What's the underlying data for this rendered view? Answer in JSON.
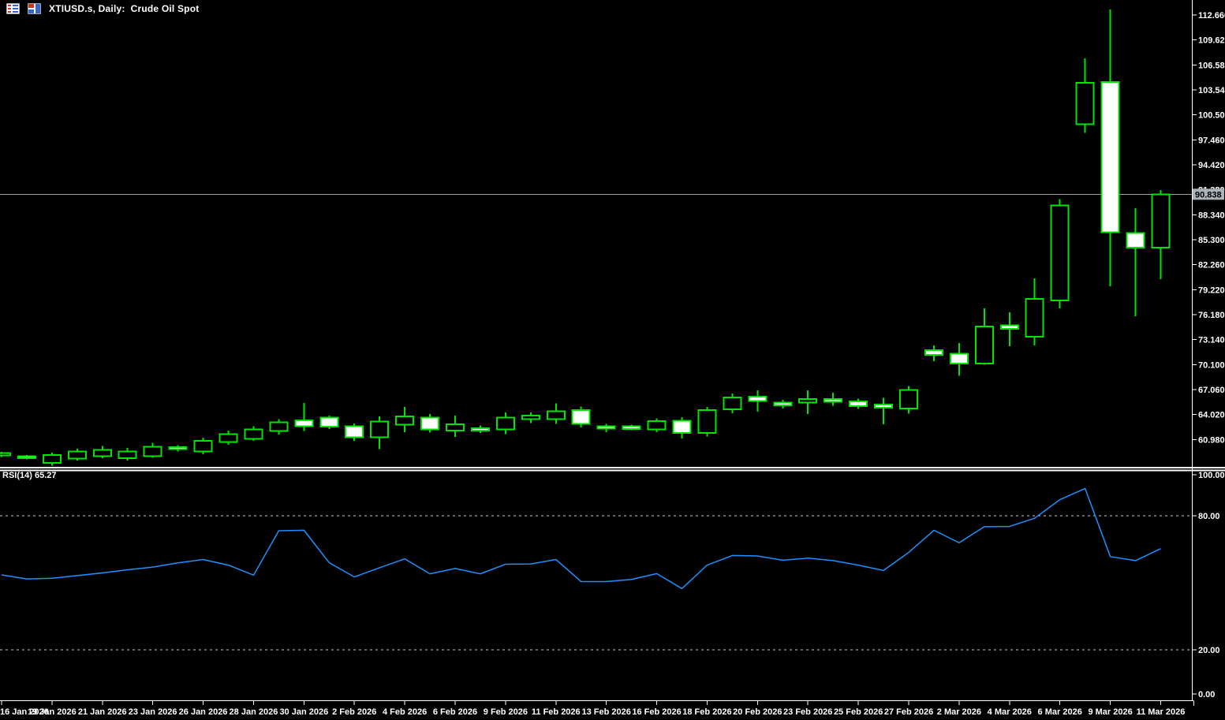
{
  "window": {
    "title": "XTIUSD.s, Daily:  Crude Oil Spot",
    "icons": [
      {
        "name": "table-icon"
      },
      {
        "name": "bar-chart-icon"
      }
    ]
  },
  "colors": {
    "background": "#000000",
    "candle_outline": "#00E400",
    "bull_fill": "#000000",
    "bear_fill": "#FFFFFF",
    "rsi_line": "#1E90FF",
    "axis_line": "#FFFFFF",
    "axis_text": "#FFFFFF",
    "level_dashed": "#CCCCCC",
    "current_price_line": "#9AA0A6",
    "current_price_label_bg": "#AAB2BA",
    "current_price_label_text": "#000000"
  },
  "chart_data": {
    "type": "candlestick",
    "symbol": "XTIUSD.s",
    "timeframe": "Daily",
    "instrument": "Crude Oil Spot",
    "current_price": "90.838",
    "ylim": [
      57.7,
      114.5
    ],
    "grid": false,
    "price_axis_ticks": [
      "112.660",
      "109.620",
      "106.580",
      "103.540",
      "100.500",
      "97.460",
      "94.420",
      "91.380",
      "88.340",
      "85.300",
      "82.260",
      "79.220",
      "76.180",
      "73.140",
      "70.100",
      "67.060",
      "64.020",
      "60.980"
    ],
    "time_axis_ticks": [
      "16 Jan 2026",
      "19 Jan 2026",
      "21 Jan 2026",
      "23 Jan 2026",
      "26 Jan 2026",
      "28 Jan 2026",
      "30 Jan 2026",
      "2 Feb 2026",
      "4 Feb 2026",
      "6 Feb 2026",
      "9 Feb 2026",
      "11 Feb 2026",
      "13 Feb 2026",
      "16 Feb 2026",
      "18 Feb 2026",
      "20 Feb 2026",
      "23 Feb 2026",
      "25 Feb 2026",
      "27 Feb 2026",
      "2 Mar 2026",
      "4 Mar 2026",
      "6 Mar 2026",
      "9 Mar 2026",
      "11 Mar 2026"
    ],
    "tick_every_n_candles": 2,
    "candles_ohlc": [
      [
        59.03,
        59.5,
        58.87,
        59.35
      ],
      [
        58.97,
        59.1,
        58.55,
        58.71
      ],
      [
        58.14,
        59.39,
        57.79,
        59.07
      ],
      [
        58.65,
        59.87,
        58.4,
        59.52
      ],
      [
        58.97,
        60.18,
        58.71,
        59.74
      ],
      [
        58.71,
        59.97,
        58.4,
        59.52
      ],
      [
        58.97,
        60.58,
        58.78,
        60.1
      ],
      [
        60.04,
        60.29,
        59.52,
        59.79
      ],
      [
        59.52,
        61.22,
        59.2,
        60.81
      ],
      [
        60.68,
        62.06,
        60.36,
        61.64
      ],
      [
        61.06,
        62.6,
        60.83,
        62.22
      ],
      [
        62.0,
        63.45,
        61.6,
        63.1
      ],
      [
        63.3,
        65.44,
        62.0,
        62.6
      ],
      [
        63.66,
        63.89,
        62.28,
        62.54
      ],
      [
        62.6,
        62.93,
        60.8,
        61.26
      ],
      [
        61.26,
        63.8,
        59.8,
        63.19
      ],
      [
        62.8,
        64.95,
        61.9,
        63.82
      ],
      [
        63.66,
        64.08,
        61.84,
        62.22
      ],
      [
        62.06,
        63.9,
        61.3,
        62.86
      ],
      [
        62.38,
        62.7,
        61.8,
        62.06
      ],
      [
        62.22,
        64.3,
        61.65,
        63.66
      ],
      [
        63.45,
        64.3,
        63.0,
        63.9
      ],
      [
        63.45,
        65.4,
        62.9,
        64.41
      ],
      [
        64.55,
        65.0,
        62.47,
        62.87
      ],
      [
        62.6,
        62.9,
        61.9,
        62.3
      ],
      [
        62.6,
        62.8,
        62.1,
        62.28
      ],
      [
        62.2,
        63.56,
        61.9,
        63.2
      ],
      [
        63.26,
        63.69,
        61.1,
        61.76
      ],
      [
        61.76,
        64.95,
        61.33,
        64.55
      ],
      [
        64.64,
        66.56,
        64.2,
        66.08
      ],
      [
        66.22,
        66.97,
        64.39,
        65.68
      ],
      [
        65.48,
        65.8,
        64.77,
        65.15
      ],
      [
        65.48,
        66.97,
        64.07,
        65.9
      ],
      [
        65.9,
        66.7,
        65.1,
        65.57
      ],
      [
        65.64,
        65.96,
        64.71,
        65.06
      ],
      [
        65.25,
        66.06,
        62.86,
        64.83
      ],
      [
        64.75,
        67.5,
        64.12,
        67.0
      ],
      [
        71.84,
        72.42,
        70.5,
        71.27
      ],
      [
        71.42,
        72.71,
        68.73,
        70.24
      ],
      [
        70.24,
        76.97,
        70.08,
        74.73
      ],
      [
        74.88,
        76.49,
        72.32,
        74.47
      ],
      [
        73.5,
        80.62,
        72.45,
        78.12
      ],
      [
        77.93,
        90.24,
        76.97,
        89.47
      ],
      [
        99.38,
        107.37,
        98.33,
        104.39
      ],
      [
        104.48,
        113.33,
        79.66,
        86.2
      ],
      [
        86.11,
        89.16,
        76.0,
        84.35
      ],
      [
        84.35,
        91.33,
        80.5,
        90.838
      ]
    ],
    "rsi": {
      "name": "RSI(14)",
      "current_value": "65.27",
      "range": [
        0,
        100
      ],
      "levels": [
        80,
        20
      ],
      "axis_ticks": [
        "100.00",
        "80.00",
        "20.00",
        "0.00"
      ],
      "values": [
        53.5,
        51.7,
        52.0,
        53.2,
        54.4,
        55.8,
        57.0,
        58.9,
        60.4,
        57.9,
        53.4,
        73.3,
        73.5,
        59.0,
        52.6,
        56.7,
        60.7,
        54.0,
        56.4,
        54.0,
        58.3,
        58.4,
        60.4,
        50.5,
        50.5,
        51.5,
        54.1,
        47.4,
        57.9,
        62.2,
        62.0,
        60.1,
        61.0,
        59.9,
        57.9,
        55.5,
        63.6,
        73.5,
        67.9,
        75.1,
        75.2,
        78.9,
        87.2,
        92.2,
        61.7,
        59.9,
        65.27
      ]
    }
  }
}
